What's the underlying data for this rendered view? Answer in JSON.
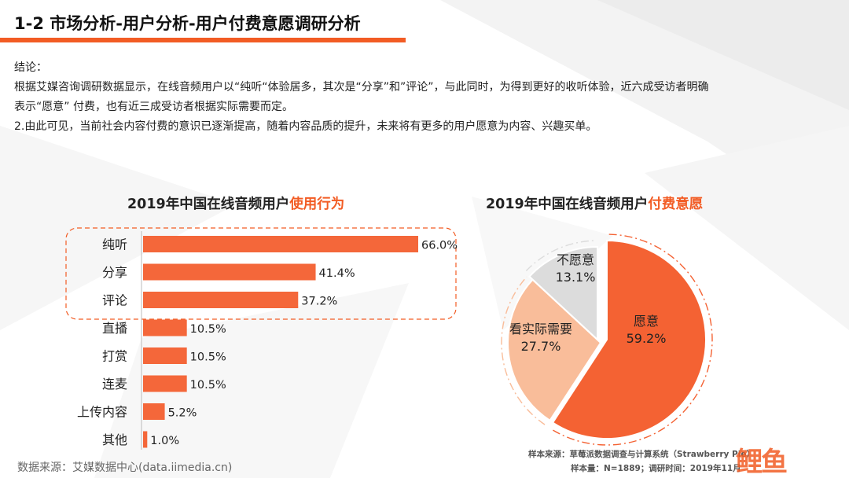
{
  "page": {
    "title": "1-2 市场分析-用户分析-用户付费意愿调研分析",
    "conclusion_lines": [
      "结论：",
      "根据艾媒咨询调研数据显示，在线音频用户以“纯听“体验居多，其次是“分享”和”评论”，与此同时，为得到更好的收听体验，近六成受访者明确",
      "表示“愿意” 付费，也有近三成受访者根据实际需要而定。",
      "2.由此可见，当前社会内容付费的意识已逐渐提高，随着内容品质的提升，未来将有更多的用户愿意为内容、兴趣买单。"
    ],
    "source_left": "数据来源：艾媒数据中心(data.iimedia.cn)",
    "source_right_line1": "样本来源：草莓派数据调查与计算系统（Strawberry Pie）",
    "source_right_line2": "样本量：N=1889；调研时间：2019年11月",
    "logo_text": "鲤鱼",
    "accent_color": "#f25c24"
  },
  "chart_data": [
    {
      "type": "bar",
      "orientation": "horizontal",
      "title_main": "2019年中国在线音频用户",
      "title_highlight": "使用行为",
      "categories": [
        "纯听",
        "分享",
        "评论",
        "直播",
        "打赏",
        "连麦",
        "上传内容",
        "其他"
      ],
      "values": [
        66.0,
        41.4,
        37.2,
        10.5,
        10.5,
        10.5,
        5.2,
        1.0
      ],
      "value_labels": [
        "66.0%",
        "41.4%",
        "37.2%",
        "10.5%",
        "10.5%",
        "10.5%",
        "5.2%",
        "1.0%"
      ],
      "unit": "%",
      "xlim": [
        0,
        66
      ],
      "highlighted_categories": [
        "纯听",
        "分享",
        "评论"
      ],
      "bar_color": "#f4673a"
    },
    {
      "type": "pie",
      "title_main": "2019年中国在线音频用户",
      "title_highlight": "付费意愿",
      "slices": [
        {
          "label": "愿意",
          "value": 59.2,
          "value_label": "59.2%",
          "color": "#f46233"
        },
        {
          "label": "看实际需要",
          "value": 27.7,
          "value_label": "27.7%",
          "color": "#f9bd9a"
        },
        {
          "label": "不愿意",
          "value": 13.1,
          "value_label": "13.1%",
          "color": "#dcdcdc"
        }
      ]
    }
  ]
}
